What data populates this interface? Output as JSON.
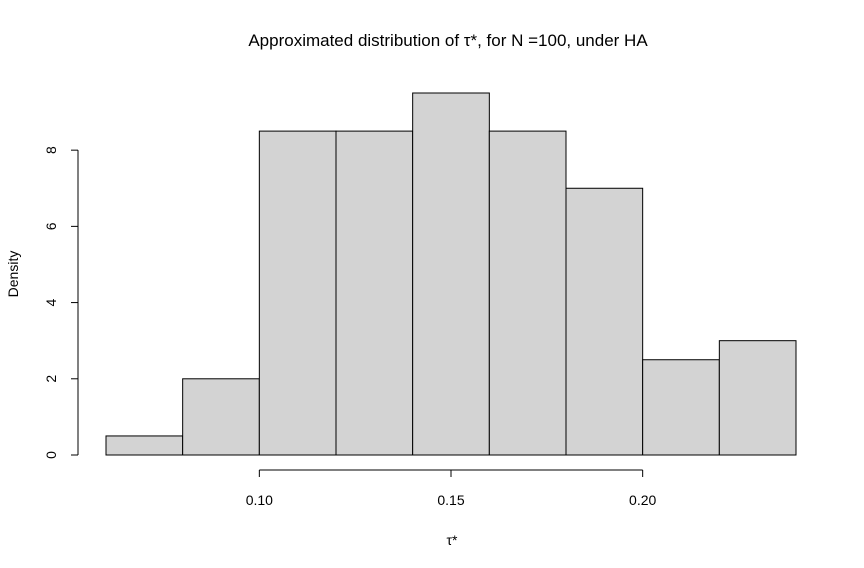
{
  "chart_data": {
    "type": "histogram",
    "title": "Approximated distribution of τ*, for N =100, under HA",
    "xlabel": "τ*",
    "ylabel": "Density",
    "bin_width": 0.02,
    "bins": [
      {
        "start": 0.06,
        "end": 0.08,
        "density": 0.5
      },
      {
        "start": 0.08,
        "end": 0.1,
        "density": 2.0
      },
      {
        "start": 0.1,
        "end": 0.12,
        "density": 8.5
      },
      {
        "start": 0.12,
        "end": 0.14,
        "density": 8.5
      },
      {
        "start": 0.14,
        "end": 0.16,
        "density": 9.5
      },
      {
        "start": 0.16,
        "end": 0.18,
        "density": 8.5
      },
      {
        "start": 0.18,
        "end": 0.2,
        "density": 7.0
      },
      {
        "start": 0.2,
        "end": 0.22,
        "density": 2.5
      },
      {
        "start": 0.22,
        "end": 0.24,
        "density": 3.0
      }
    ],
    "x_ticks": [
      0.1,
      0.15,
      0.2
    ],
    "x_tick_labels": [
      "0.10",
      "0.15",
      "0.20"
    ],
    "y_ticks": [
      0,
      2,
      4,
      6,
      8
    ],
    "y_tick_labels": [
      "0",
      "2",
      "4",
      "6",
      "8"
    ],
    "xlim": [
      0.06,
      0.24
    ],
    "ylim": [
      0,
      9.5
    ],
    "bar_color": "#d3d3d3",
    "grid": false,
    "legend": "none"
  }
}
